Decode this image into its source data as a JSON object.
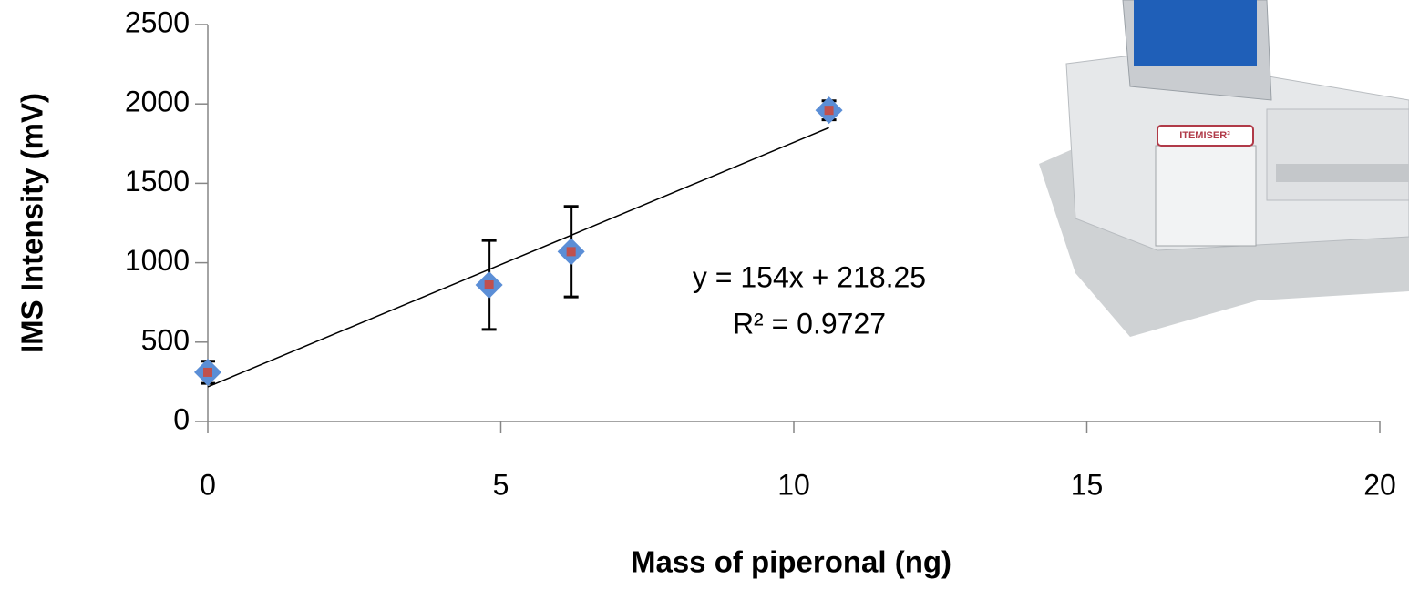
{
  "chart_data": {
    "type": "scatter",
    "x_label": "Mass of piperonal (ng)",
    "y_label": "IMS Intensity (mV)",
    "series": [
      {
        "x": [
          0,
          4.8,
          6.2,
          10.6
        ],
        "values": [
          310,
          860,
          1070,
          1960
        ],
        "errors": [
          70,
          280,
          285,
          60
        ],
        "color": "#5b8ed6",
        "inner_color": "#c0504d"
      }
    ],
    "trendline": {
      "slope": 154,
      "intercept": 218.25,
      "color": "#000000",
      "label": "y = 154x + 218.25",
      "r2_label": "R² = 0.9727"
    },
    "xlim": [
      0,
      20
    ],
    "xticks": [
      0,
      5,
      10,
      15,
      20
    ],
    "ylim": [
      0,
      2500
    ],
    "yticks": [
      0,
      500,
      1000,
      1500,
      2000,
      2500
    ],
    "device_label": "ITEMISER³"
  }
}
